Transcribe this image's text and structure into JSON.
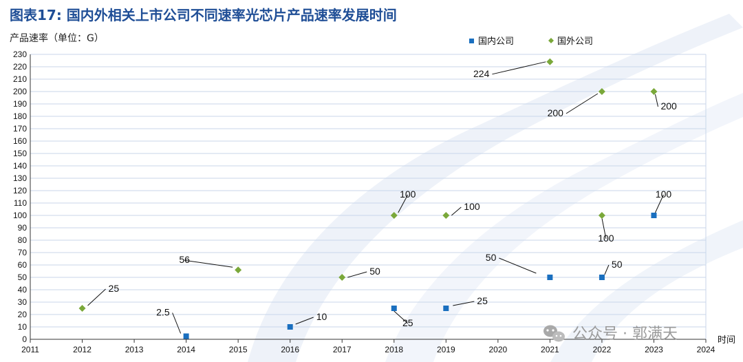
{
  "title": "图表17:  国内外相关上市公司不同速率光芯片产品速率发展时间",
  "watermark": "公众号 · 郭满天",
  "chart_data": {
    "type": "scatter",
    "ylabel": "产品速率（单位：G）",
    "xlabel": "时间",
    "xlim": [
      2011,
      2024
    ],
    "ylim": [
      0,
      230
    ],
    "x_ticks": [
      "2011",
      "2012",
      "2013",
      "2014",
      "2015",
      "2016",
      "2017",
      "2018",
      "2019",
      "2020",
      "2021",
      "2022",
      "2023",
      "2024"
    ],
    "y_ticks": [
      "0",
      "10",
      "20",
      "30",
      "40",
      "50",
      "60",
      "70",
      "80",
      "90",
      "100",
      "110",
      "120",
      "130",
      "140",
      "150",
      "160",
      "170",
      "180",
      "190",
      "200",
      "210",
      "220",
      "230"
    ],
    "grid": "horizontal",
    "legend_position": "top-right",
    "series": [
      {
        "name": "国内公司",
        "color": "#1a6fbf",
        "marker": "square",
        "points": [
          {
            "x": 2014,
            "y": 2.5,
            "label": "2.5"
          },
          {
            "x": 2016,
            "y": 10,
            "label": "10"
          },
          {
            "x": 2018,
            "y": 25,
            "label": "25"
          },
          {
            "x": 2019,
            "y": 25,
            "label": "25"
          },
          {
            "x": 2021,
            "y": 50,
            "label": "50"
          },
          {
            "x": 2022,
            "y": 50,
            "label": "50"
          },
          {
            "x": 2023,
            "y": 100,
            "label": "100"
          }
        ]
      },
      {
        "name": "国外公司",
        "color": "#7aa83a",
        "marker": "diamond",
        "points": [
          {
            "x": 2012,
            "y": 25,
            "label": "25"
          },
          {
            "x": 2015,
            "y": 56,
            "label": "56"
          },
          {
            "x": 2017,
            "y": 50,
            "label": "50"
          },
          {
            "x": 2018,
            "y": 100,
            "label": "100"
          },
          {
            "x": 2019,
            "y": 100,
            "label": "100"
          },
          {
            "x": 2021,
            "y": 224,
            "label": "224"
          },
          {
            "x": 2022,
            "y": 200,
            "label": "200"
          },
          {
            "x": 2022,
            "y": 100,
            "label": "100"
          },
          {
            "x": 2023,
            "y": 200,
            "label": "200"
          }
        ]
      }
    ]
  }
}
